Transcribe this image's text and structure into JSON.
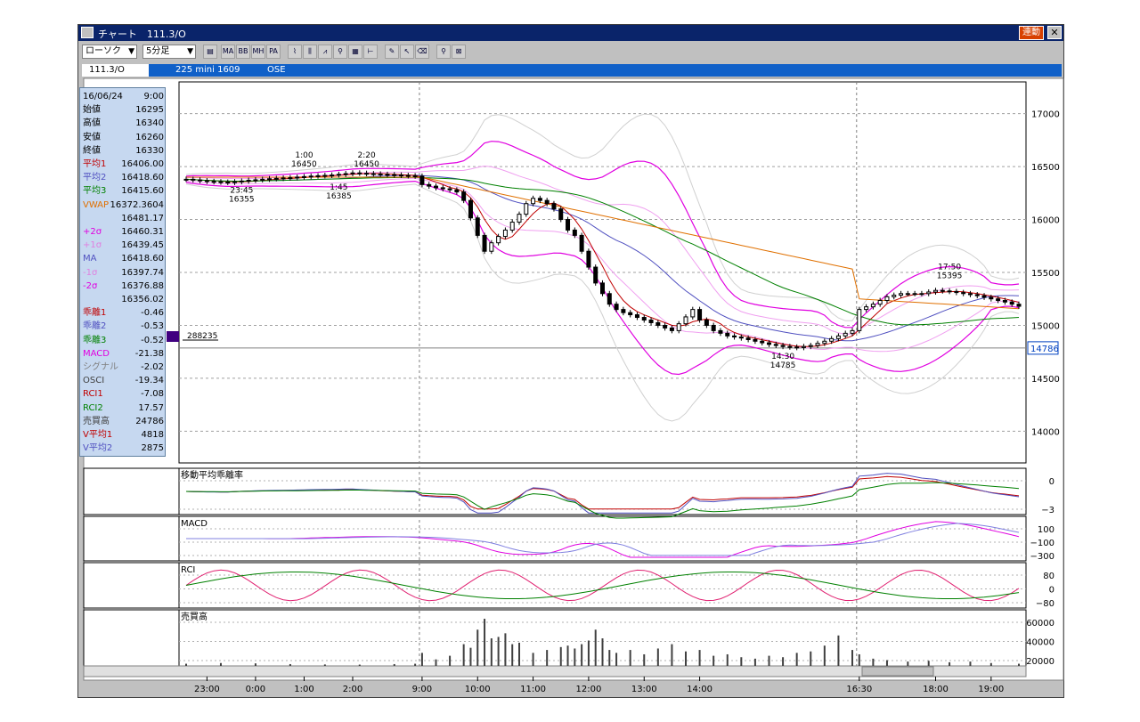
{
  "window": {
    "title": "チャート　111.3/O",
    "renka_label": "連動",
    "close_glyph": "✕"
  },
  "toolbar": {
    "chart_type": "ローソク",
    "interval": "5分足",
    "buttons": [
      "MA",
      "BB",
      "MH",
      "PA"
    ]
  },
  "infobar": {
    "code": "111.3/O",
    "name": "225 mini 1609",
    "market": "OSE"
  },
  "panel": {
    "rows": [
      {
        "label": "16/06/24",
        "value": "9:00",
        "color": "#000000"
      },
      {
        "label": "始値",
        "value": "16295",
        "color": "#000000"
      },
      {
        "label": "高値",
        "value": "16340",
        "color": "#000000"
      },
      {
        "label": "安値",
        "value": "16260",
        "color": "#000000"
      },
      {
        "label": "終値",
        "value": "16330",
        "color": "#000000"
      },
      {
        "label": "平均1",
        "value": "16406.00",
        "color": "#c00000"
      },
      {
        "label": "平均2",
        "value": "16418.60",
        "color": "#5050c0"
      },
      {
        "label": "平均3",
        "value": "16415.60",
        "color": "#008000"
      },
      {
        "label": "VWAP",
        "value": "16372.3604",
        "color": "#e07000"
      },
      {
        "label": "",
        "value": "16481.17",
        "color": "#000000"
      },
      {
        "label": "+2σ",
        "value": "16460.31",
        "color": "#e000e0"
      },
      {
        "label": "+1σ",
        "value": "16439.45",
        "color": "#e080e0"
      },
      {
        "label": "MA",
        "value": "16418.60",
        "color": "#5050c0"
      },
      {
        "label": "-1σ",
        "value": "16397.74",
        "color": "#e080e0"
      },
      {
        "label": "-2σ",
        "value": "16376.88",
        "color": "#e000e0"
      },
      {
        "label": "",
        "value": "16356.02",
        "color": "#000000"
      },
      {
        "label": "乖離1",
        "value": "-0.46",
        "color": "#c00000"
      },
      {
        "label": "乖離2",
        "value": "-0.53",
        "color": "#5050c0"
      },
      {
        "label": "乖離3",
        "value": "-0.52",
        "color": "#008000"
      },
      {
        "label": "MACD",
        "value": "-21.38",
        "color": "#e000e0"
      },
      {
        "label": "シグナル",
        "value": "-2.02",
        "color": "#808080"
      },
      {
        "label": "OSCI",
        "value": "-19.34",
        "color": "#404040"
      },
      {
        "label": "RCI1",
        "value": "-7.08",
        "color": "#c00000"
      },
      {
        "label": "RCI2",
        "value": "17.57",
        "color": "#008000"
      },
      {
        "label": "売買高",
        "value": "24786",
        "color": "#404040"
      },
      {
        "label": "V平均1",
        "value": "4818",
        "color": "#c00000"
      },
      {
        "label": "V平均2",
        "value": "2875",
        "color": "#5050c0"
      }
    ]
  },
  "chart_data": {
    "type": "candlestick",
    "x_tick_labels": [
      "23:00",
      "0:00",
      "1:00",
      "2:00",
      "9:00",
      "10:00",
      "11:00",
      "12:00",
      "13:00",
      "14:00",
      "16:30",
      "18:00",
      "19:00"
    ],
    "price_axis": {
      "ticks": [
        14000,
        14500,
        15000,
        15500,
        16000,
        16500,
        17000
      ],
      "ylim": [
        13700,
        17300
      ]
    },
    "current_price": 14786,
    "volume_marker": "288235",
    "annotations": [
      {
        "time": "23:45",
        "price": 16355
      },
      {
        "time": "1:00",
        "price": 16450
      },
      {
        "time": "1:45",
        "price": 16385
      },
      {
        "time": "2:20",
        "price": 16450
      },
      {
        "time": "14:30",
        "price": 14785
      },
      {
        "time": "17:50",
        "price": 15395
      }
    ],
    "session_break_labels": [
      "9:00",
      "16:30"
    ],
    "subpanels": [
      {
        "title": "移動平均乖離率",
        "ticks": [
          "0",
          "−3"
        ]
      },
      {
        "title": "MACD",
        "ticks": [
          "100",
          "−100",
          "−300"
        ]
      },
      {
        "title": "RCI",
        "ticks": [
          "80",
          "0",
          "−80"
        ]
      },
      {
        "title": "売買高",
        "ticks": [
          "60000",
          "40000",
          "20000"
        ]
      }
    ],
    "price_path": [
      [
        0,
        16380
      ],
      [
        3,
        16360
      ],
      [
        6,
        16350
      ],
      [
        9,
        16370
      ],
      [
        12,
        16385
      ],
      [
        15,
        16395
      ],
      [
        18,
        16410
      ],
      [
        21,
        16420
      ],
      [
        24,
        16440
      ],
      [
        27,
        16430
      ],
      [
        30,
        16420
      ],
      [
        33,
        16410
      ],
      [
        34,
        16330
      ],
      [
        36,
        16300
      ],
      [
        38,
        16280
      ],
      [
        39,
        16260
      ],
      [
        40,
        16180
      ],
      [
        42,
        15850
      ],
      [
        43,
        15700
      ],
      [
        44,
        15780
      ],
      [
        46,
        15900
      ],
      [
        48,
        16050
      ],
      [
        49,
        16150
      ],
      [
        50,
        16200
      ],
      [
        51,
        16180
      ],
      [
        52,
        16150
      ],
      [
        53,
        16100
      ],
      [
        54,
        16000
      ],
      [
        55,
        15900
      ],
      [
        56,
        15850
      ],
      [
        57,
        15700
      ],
      [
        58,
        15550
      ],
      [
        59,
        15400
      ],
      [
        60,
        15300
      ],
      [
        61,
        15200
      ],
      [
        62,
        15150
      ],
      [
        63,
        15120
      ],
      [
        64,
        15100
      ],
      [
        66,
        15050
      ],
      [
        68,
        15000
      ],
      [
        70,
        14950
      ],
      [
        72,
        15080
      ],
      [
        73,
        15150
      ],
      [
        74,
        15050
      ],
      [
        76,
        14950
      ],
      [
        78,
        14900
      ],
      [
        80,
        14880
      ],
      [
        82,
        14850
      ],
      [
        84,
        14820
      ],
      [
        86,
        14800
      ],
      [
        88,
        14790
      ],
      [
        90,
        14810
      ],
      [
        92,
        14850
      ],
      [
        94,
        14900
      ],
      [
        96,
        14950
      ],
      [
        97,
        15150
      ],
      [
        99,
        15200
      ],
      [
        101,
        15270
      ],
      [
        103,
        15300
      ],
      [
        106,
        15300
      ],
      [
        108,
        15330
      ],
      [
        110,
        15320
      ],
      [
        112,
        15300
      ],
      [
        114,
        15280
      ],
      [
        116,
        15250
      ],
      [
        118,
        15220
      ],
      [
        120,
        15180
      ]
    ],
    "volume": [
      [
        0,
        3000
      ],
      [
        5,
        4000
      ],
      [
        10,
        3500
      ],
      [
        15,
        2500
      ],
      [
        20,
        2000
      ],
      [
        25,
        1800
      ],
      [
        30,
        2500
      ],
      [
        33,
        3000
      ],
      [
        34,
        18000
      ],
      [
        36,
        9000
      ],
      [
        38,
        14000
      ],
      [
        40,
        30000
      ],
      [
        41,
        25000
      ],
      [
        42,
        50000
      ],
      [
        43,
        65000
      ],
      [
        44,
        38000
      ],
      [
        45,
        40000
      ],
      [
        46,
        45000
      ],
      [
        47,
        30000
      ],
      [
        48,
        32000
      ],
      [
        50,
        18000
      ],
      [
        52,
        22000
      ],
      [
        54,
        26000
      ],
      [
        55,
        28000
      ],
      [
        56,
        24000
      ],
      [
        57,
        30000
      ],
      [
        58,
        35000
      ],
      [
        59,
        50000
      ],
      [
        60,
        38000
      ],
      [
        61,
        22000
      ],
      [
        62,
        18000
      ],
      [
        64,
        22000
      ],
      [
        66,
        16000
      ],
      [
        68,
        24000
      ],
      [
        70,
        30000
      ],
      [
        72,
        20000
      ],
      [
        74,
        22000
      ],
      [
        76,
        14000
      ],
      [
        78,
        16000
      ],
      [
        80,
        12000
      ],
      [
        82,
        10000
      ],
      [
        84,
        14000
      ],
      [
        86,
        12000
      ],
      [
        88,
        18000
      ],
      [
        90,
        20000
      ],
      [
        92,
        28000
      ],
      [
        94,
        42000
      ],
      [
        96,
        22000
      ],
      [
        97,
        16000
      ],
      [
        99,
        10000
      ],
      [
        101,
        8000
      ],
      [
        104,
        6000
      ],
      [
        107,
        7000
      ],
      [
        110,
        5000
      ],
      [
        113,
        6000
      ],
      [
        116,
        4000
      ],
      [
        120,
        3000
      ]
    ]
  }
}
